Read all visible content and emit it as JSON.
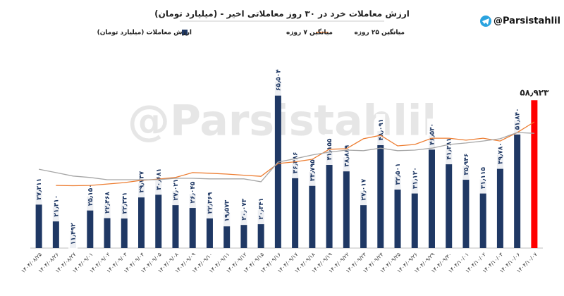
{
  "chart_data": {
    "type": "bar",
    "title": "ارزش معاملات خرد در ۳۰ روز معاملاتی اخیر - (میلیارد تومان)",
    "channel": "@Parsistahlil",
    "watermark": "@Parsistahlil",
    "categories": [
      "۱۴۰۴/۰۸/۲۵",
      "۱۴۰۴/۰۸/۲۶",
      "۱۴۰۴/۰۸/۲۷",
      "۱۴۰۴/۰۹/۰۱",
      "۱۴۰۴/۰۹/۰۲",
      "۱۴۰۴/۰۹/۰۳",
      "۱۴۰۴/۰۹/۰۴",
      "۱۴۰۴/۰۹/۰۵",
      "۱۴۰۴/۰۹/۰۸",
      "۱۴۰۴/۰۹/۰۹",
      "۱۴۰۴/۰۹/۱۰",
      "۱۴۰۴/۰۹/۱۱",
      "۱۴۰۴/۰۹/۱۲",
      "۱۴۰۴/۰۹/۱۵",
      "۱۴۰۴/۰۹/۱۶",
      "۱۴۰۴/۰۹/۱۷",
      "۱۴۰۴/۰۹/۱۸",
      "۱۴۰۴/۰۹/۱۹",
      "۱۴۰۴/۰۹/۲۲",
      "۱۴۰۴/۰۹/۲۳",
      "۱۴۰۴/۰۹/۲۴",
      "۱۴۰۴/۰۹/۲۵",
      "۱۴۰۴/۰۹/۲۶",
      "۱۴۰۴/۰۹/۲۹",
      "۱۴۰۴/۰۹/۳۰",
      "۱۴۰۴/۱۰/۰۱",
      "۱۴۰۴/۱۰/۰۲",
      "۱۴۰۴/۱۰/۰۳",
      "۱۴۰۴/۱۰/۰۶",
      "۱۴۰۴/۱۰/۰۷"
    ],
    "ylim": [
      7,
      70
    ],
    "series": [
      {
        "name": "ارزش معاملات (میلیارد تومان)",
        "type": "bar",
        "color": "#1f3864",
        "colors": [
          "#1f3864",
          "#1f3864",
          "#1f3864",
          "#1f3864",
          "#1f3864",
          "#1f3864",
          "#1f3864",
          "#1f3864",
          "#1f3864",
          "#1f3864",
          "#1f3864",
          "#1f3864",
          "#1f3864",
          "#1f3864",
          "#1f3864",
          "#1f3864",
          "#1f3864",
          "#1f3864",
          "#1f3864",
          "#1f3864",
          "#1f3864",
          "#1f3864",
          "#1f3864",
          "#1f3864",
          "#1f3864",
          "#1f3864",
          "#1f3864",
          "#1f3864",
          "#1f3864",
          "#ff0000"
        ],
        "values": [
          27.211,
          21.31,
          11.492,
          25.15,
          22.468,
          22.331,
          29.737,
          30.681,
          27.021,
          26.045,
          22.369,
          19.573,
          20.073,
          20.341,
          65.504,
          36.486,
          33.795,
          41.155,
          38.889,
          27.017,
          48.091,
          32.501,
          31.12,
          46.53,
          41.381,
          35.946,
          31.115,
          39.78,
          51.84,
          58.923
        ],
        "value_labels": [
          "۲۷٫۲۱۱",
          "۲۱٫۳۱۰",
          "۱۱٫۴۹۲",
          "۲۵٫۱۵۰",
          "۲۲٫۴۶۸",
          "۲۲٫۳۳۱",
          "۲۹٫۷۳۷",
          "۳۰٫۶۸۱",
          "۲۷٫۰۲۱",
          "۲۶٫۰۴۵",
          "۲۲٫۳۶۹",
          "۱۹٫۵۷۳",
          "۲۰٫۰۷۳",
          "۲۰٫۳۴۱",
          "۶۵٫۵۰۴",
          "۳۶٫۴۸۶",
          "۳۳٫۷۹۵",
          "۴۱٫۱۵۵",
          "۳۸٫۸۸۹",
          "۲۷٫۰۱۷",
          "۴۸٫۰۹۱",
          "۳۲٫۵۰۱",
          "۳۱٫۱۲۰",
          "۴۶٫۵۳۰",
          "۴۱٫۳۸۱",
          "۳۵٫۹۴۶",
          "۳۱٫۱۱۵",
          "۳۹٫۷۸۰",
          "۵۱٫۸۴۰",
          "۵۸٫۹۲۳"
        ]
      },
      {
        "name": "میانگین ۷ روزه",
        "type": "line",
        "color": "#ed7d31",
        "values": [
          null,
          29.0,
          28.9,
          29.0,
          29.5,
          30.0,
          30.8,
          31.2,
          31.8,
          33.5,
          33.3,
          33.0,
          32.6,
          32.2,
          36.7,
          37.3,
          38.2,
          41.7,
          41.9,
          45.4,
          46.6,
          42.9,
          43.4,
          45.6,
          45.6,
          44.9,
          45.6,
          44.6,
          47.6,
          51.3
        ]
      },
      {
        "name": "میانگین ۲۵ روزه",
        "type": "line",
        "color": "#a6a6a6",
        "values": [
          34.7,
          33.5,
          32.3,
          31.8,
          31.0,
          31.0,
          31.0,
          31.0,
          31.5,
          31.5,
          31.3,
          31.3,
          31.3,
          30.3,
          37.2,
          38.4,
          39.7,
          40.7,
          41.4,
          41.2,
          42.1,
          41.2,
          41.4,
          42.1,
          43.4,
          43.9,
          44.6,
          45.4,
          47.6,
          47.3
        ]
      }
    ]
  }
}
